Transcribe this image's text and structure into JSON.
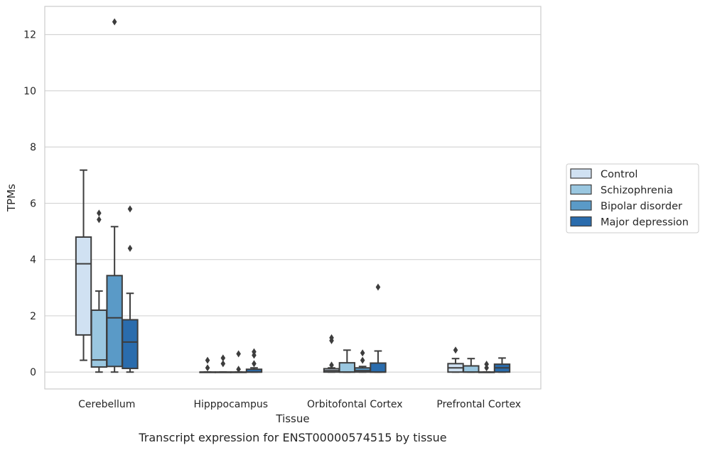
{
  "caption": "Transcript expression for ENST00000574515 by tissue",
  "chart_data": {
    "type": "box",
    "title": "",
    "xlabel": "Tissue",
    "ylabel": "TPMs",
    "ylim": [
      -0.6,
      13.0
    ],
    "yticks": [
      0,
      2,
      4,
      6,
      8,
      10,
      12
    ],
    "grid": "horizontal",
    "legend_position": "right",
    "categories": [
      "Cerebellum",
      "Hipppocampus",
      "Orbitofontal Cortex",
      "Prefrontal Cortex"
    ],
    "series": [
      {
        "name": "Control",
        "color": "#d0e1f2",
        "boxes": [
          {
            "wlow": 0.42,
            "q1": 1.32,
            "median": 3.85,
            "q3": 4.8,
            "whigh": 7.18,
            "outliers": []
          },
          {
            "wlow": 0.0,
            "q1": 0.0,
            "median": 0.0,
            "q3": 0.0,
            "whigh": 0.0,
            "outliers": [
              0.15,
              0.42
            ]
          },
          {
            "wlow": 0.0,
            "q1": 0.0,
            "median": 0.05,
            "q3": 0.12,
            "whigh": 0.15,
            "outliers": [
              0.25,
              1.12,
              1.22
            ]
          },
          {
            "wlow": 0.0,
            "q1": 0.0,
            "median": 0.15,
            "q3": 0.3,
            "whigh": 0.48,
            "outliers": [
              0.78
            ]
          }
        ]
      },
      {
        "name": "Schizophrenia",
        "color": "#9ac7e0",
        "boxes": [
          {
            "wlow": 0.0,
            "q1": 0.18,
            "median": 0.43,
            "q3": 2.2,
            "whigh": 2.88,
            "outliers": [
              5.42,
              5.65
            ]
          },
          {
            "wlow": 0.0,
            "q1": 0.0,
            "median": 0.0,
            "q3": 0.0,
            "whigh": 0.0,
            "outliers": [
              0.3,
              0.5
            ]
          },
          {
            "wlow": 0.0,
            "q1": 0.0,
            "median": 0.0,
            "q3": 0.33,
            "whigh": 0.78,
            "outliers": []
          },
          {
            "wlow": 0.0,
            "q1": 0.0,
            "median": 0.0,
            "q3": 0.22,
            "whigh": 0.48,
            "outliers": []
          }
        ]
      },
      {
        "name": "Bipolar disorder",
        "color": "#5a9ac7",
        "boxes": [
          {
            "wlow": 0.0,
            "q1": 0.2,
            "median": 1.93,
            "q3": 3.43,
            "whigh": 5.17,
            "outliers": [
              12.45
            ]
          },
          {
            "wlow": 0.0,
            "q1": 0.0,
            "median": 0.0,
            "q3": 0.0,
            "whigh": 0.0,
            "outliers": [
              0.1,
              0.65
            ]
          },
          {
            "wlow": 0.0,
            "q1": 0.0,
            "median": 0.05,
            "q3": 0.15,
            "whigh": 0.2,
            "outliers": [
              0.42,
              0.68
            ]
          },
          {
            "wlow": 0.0,
            "q1": 0.0,
            "median": 0.0,
            "q3": 0.0,
            "whigh": 0.0,
            "outliers": [
              0.15,
              0.28
            ]
          }
        ]
      },
      {
        "name": "Major depression",
        "color": "#2a6cad",
        "boxes": [
          {
            "wlow": 0.0,
            "q1": 0.13,
            "median": 1.07,
            "q3": 1.86,
            "whigh": 2.8,
            "outliers": [
              4.4,
              5.8
            ]
          },
          {
            "wlow": 0.0,
            "q1": 0.0,
            "median": 0.0,
            "q3": 0.1,
            "whigh": 0.15,
            "outliers": [
              0.3,
              0.6,
              0.72
            ]
          },
          {
            "wlow": 0.0,
            "q1": 0.0,
            "median": 0.0,
            "q3": 0.32,
            "whigh": 0.75,
            "outliers": [
              3.02
            ]
          },
          {
            "wlow": 0.0,
            "q1": 0.0,
            "median": 0.15,
            "q3": 0.28,
            "whigh": 0.5,
            "outliers": []
          }
        ]
      }
    ]
  }
}
